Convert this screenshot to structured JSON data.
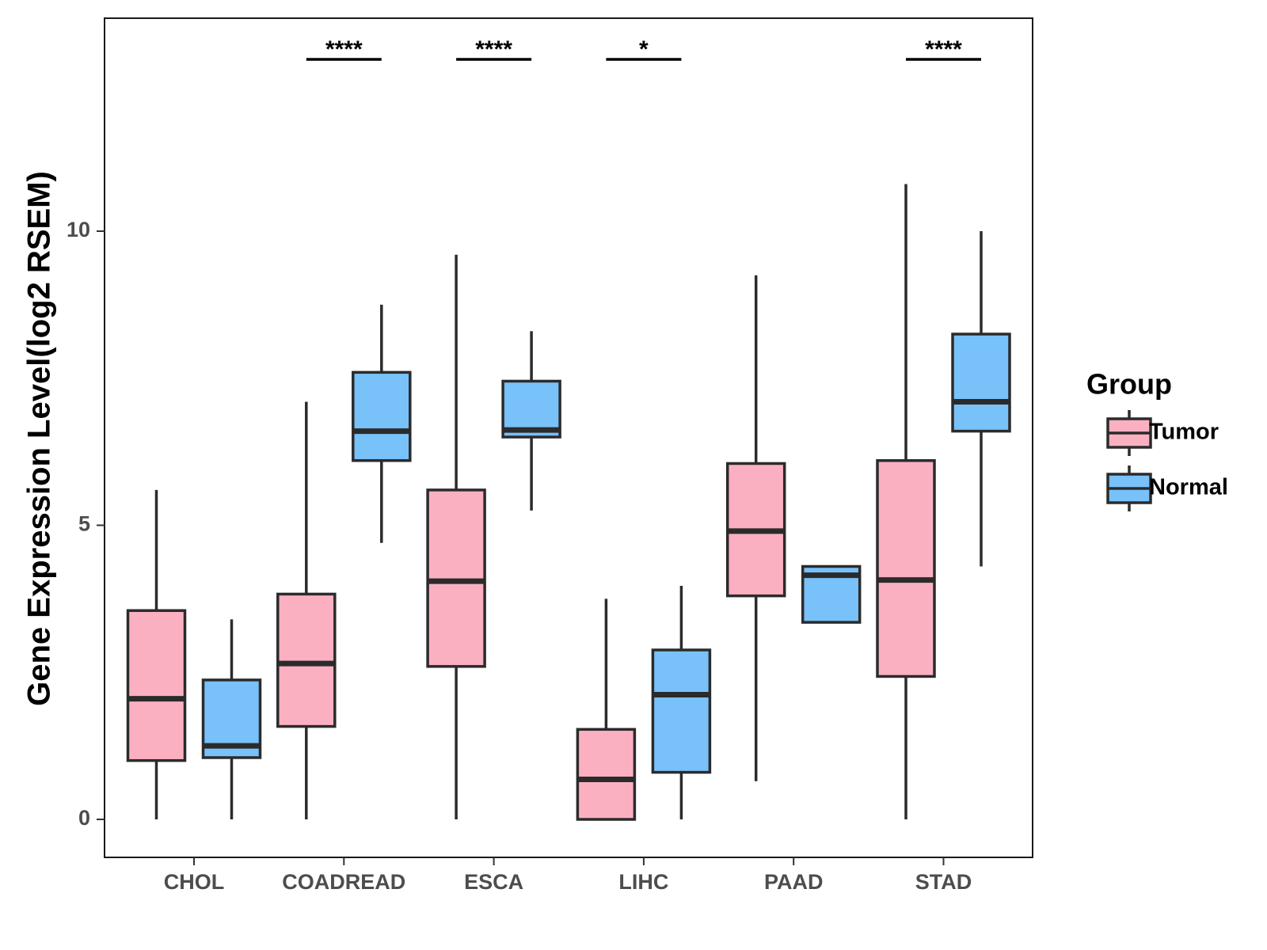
{
  "chart_data": {
    "type": "boxplot",
    "title": "",
    "xlabel": "",
    "ylabel": "Gene Expression Level(log2 RSEM)",
    "ylim": [
      -0.65,
      13.6
    ],
    "yticks": [
      0,
      5,
      10
    ],
    "ytick_labels": [
      "0",
      "5",
      "10"
    ],
    "grid": false,
    "legend": {
      "title": "Group",
      "position": "right",
      "items": [
        {
          "name": "Tumor",
          "color": "#fbb0c2"
        },
        {
          "name": "Normal",
          "color": "#78c1f9"
        }
      ]
    },
    "categories": [
      "CHOL",
      "COADREAD",
      "ESCA",
      "LIHC",
      "PAAD",
      "STAD"
    ],
    "series": [
      {
        "name": "Tumor",
        "color": "#fbb0c2",
        "boxes": [
          {
            "whislo": 0.0,
            "q1": 1.0,
            "med": 2.05,
            "q3": 3.55,
            "whishi": 5.6
          },
          {
            "whislo": 0.0,
            "q1": 1.58,
            "med": 2.65,
            "q3": 3.83,
            "whishi": 7.1
          },
          {
            "whislo": 0.0,
            "q1": 2.6,
            "med": 4.05,
            "q3": 5.6,
            "whishi": 9.6
          },
          {
            "whislo": 0.0,
            "q1": 0.0,
            "med": 0.68,
            "q3": 1.53,
            "whishi": 3.75
          },
          {
            "whislo": 0.65,
            "q1": 3.8,
            "med": 4.9,
            "q3": 6.05,
            "whishi": 9.25
          },
          {
            "whislo": 0.0,
            "q1": 2.43,
            "med": 4.07,
            "q3": 6.1,
            "whishi": 10.8
          }
        ]
      },
      {
        "name": "Normal",
        "color": "#78c1f9",
        "boxes": [
          {
            "whislo": 0.0,
            "q1": 1.05,
            "med": 1.25,
            "q3": 2.37,
            "whishi": 3.4
          },
          {
            "whislo": 4.7,
            "q1": 6.1,
            "med": 6.6,
            "q3": 7.6,
            "whishi": 8.75
          },
          {
            "whislo": 5.25,
            "q1": 6.5,
            "med": 6.62,
            "q3": 7.45,
            "whishi": 8.3
          },
          {
            "whislo": 0.0,
            "q1": 0.8,
            "med": 2.12,
            "q3": 2.88,
            "whishi": 3.97
          },
          {
            "whislo": null,
            "q1": 3.35,
            "med": 4.15,
            "q3": 4.3,
            "whishi": null
          },
          {
            "whislo": 4.3,
            "q1": 6.6,
            "med": 7.1,
            "q3": 8.25,
            "whishi": 10.0
          }
        ]
      }
    ],
    "annotations": [
      {
        "category": "COADREAD",
        "label": "****"
      },
      {
        "category": "ESCA",
        "label": "****"
      },
      {
        "category": "LIHC",
        "label": "*"
      },
      {
        "category": "STAD",
        "label": "****"
      }
    ]
  }
}
